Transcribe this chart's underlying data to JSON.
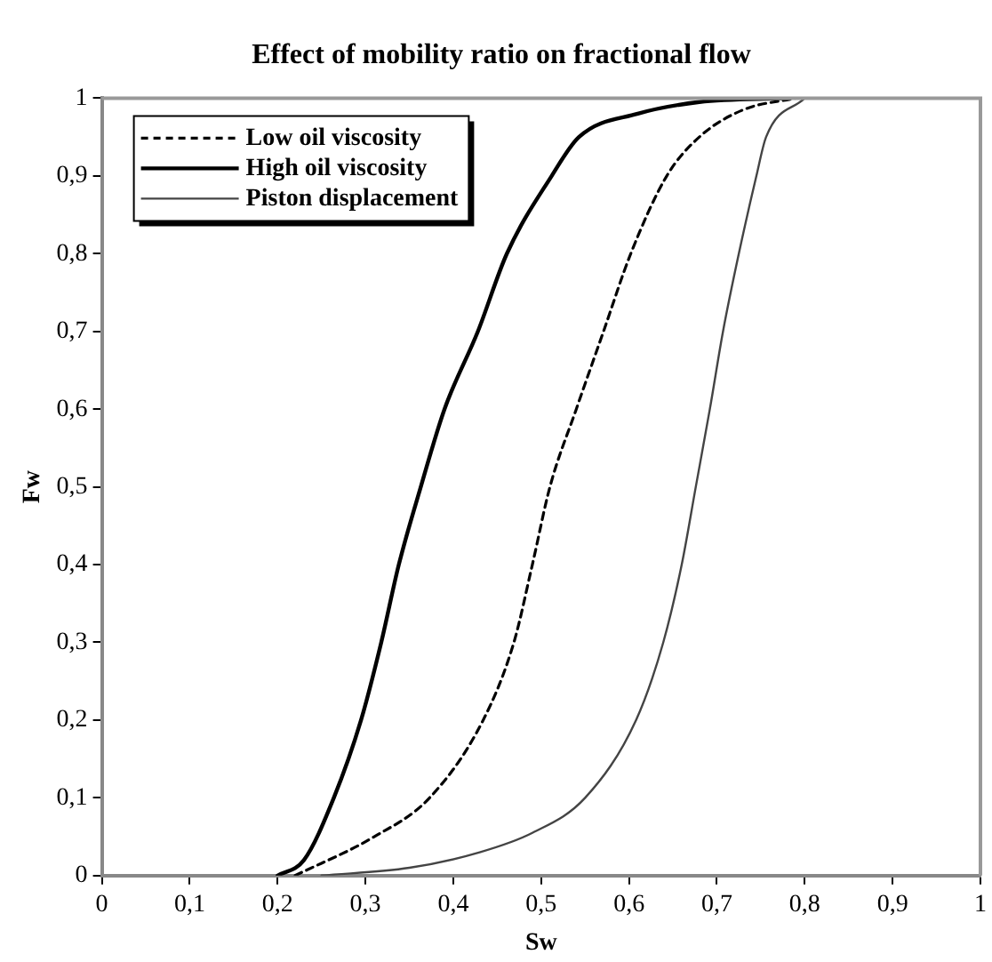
{
  "chart_data": {
    "type": "line",
    "title": "Effect of mobility ratio on fractional flow",
    "xlabel": "Sw",
    "ylabel": "Fw",
    "xlim": [
      0,
      1
    ],
    "ylim": [
      0,
      1
    ],
    "xticks": [
      0,
      {
        "value": 0.1,
        "label": "0,1"
      },
      {
        "value": 0.2,
        "label": "0,2"
      },
      {
        "value": 0.3,
        "label": "0,3"
      },
      {
        "value": 0.4,
        "label": "0,4"
      },
      {
        "value": 0.5,
        "label": "0,5"
      },
      {
        "value": 0.6,
        "label": "0,6"
      },
      {
        "value": 0.7,
        "label": "0,7"
      },
      {
        "value": 0.8,
        "label": "0,8"
      },
      {
        "value": 0.9,
        "label": "0,9"
      },
      1
    ],
    "yticks": [
      0,
      {
        "value": 0.1,
        "label": "0,1"
      },
      {
        "value": 0.2,
        "label": "0,2"
      },
      {
        "value": 0.3,
        "label": "0,3"
      },
      {
        "value": 0.4,
        "label": "0,4"
      },
      {
        "value": 0.5,
        "label": "0,5"
      },
      {
        "value": 0.6,
        "label": "0,6"
      },
      {
        "value": 0.7,
        "label": "0,7"
      },
      {
        "value": 0.8,
        "label": "0,8"
      },
      {
        "value": 0.9,
        "label": "0,9"
      },
      1
    ],
    "grid": false,
    "legend": "top left",
    "marker": "none",
    "series": [
      {
        "name": "Low oil viscosity",
        "color": "#000000",
        "line_style": "dashed",
        "x": [
          0.22,
          0.31,
          0.373,
          0.434,
          0.469,
          0.49,
          0.51,
          0.54,
          0.571,
          0.602,
          0.643,
          0.68,
          0.73,
          0.79
        ],
        "values": [
          0,
          0.05,
          0.1,
          0.2,
          0.3,
          0.4,
          0.5,
          0.6,
          0.7,
          0.8,
          0.9,
          0.95,
          0.985,
          1
        ]
      },
      {
        "name": "High oil viscosity",
        "color": "#000000",
        "line_style": "solid",
        "x": [
          0.2,
          0.23,
          0.264,
          0.295,
          0.318,
          0.338,
          0.363,
          0.39,
          0.428,
          0.461,
          0.512,
          0.543,
          0.61,
          0.68,
          0.78
        ],
        "values": [
          0,
          0.02,
          0.1,
          0.2,
          0.3,
          0.4,
          0.5,
          0.6,
          0.7,
          0.8,
          0.9,
          0.95,
          0.98,
          0.995,
          1
        ]
      },
      {
        "name": "Piston displacement",
        "color": "#444444",
        "line_style": "solid",
        "x": [
          0.25,
          0.35,
          0.43,
          0.49,
          0.55,
          0.608,
          0.639,
          0.66,
          0.676,
          0.692,
          0.707,
          0.725,
          0.745,
          0.756,
          0.8
        ],
        "values": [
          0,
          0.01,
          0.03,
          0.055,
          0.1,
          0.2,
          0.3,
          0.4,
          0.5,
          0.6,
          0.7,
          0.8,
          0.9,
          0.95,
          1
        ]
      }
    ]
  }
}
